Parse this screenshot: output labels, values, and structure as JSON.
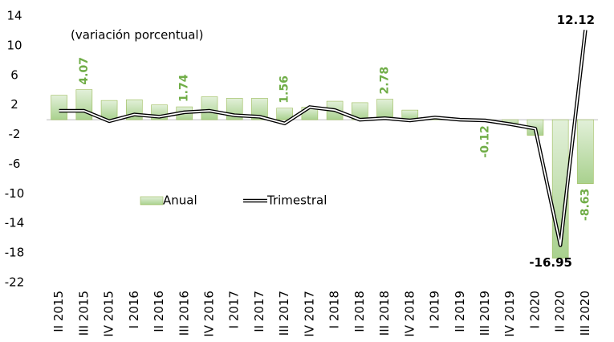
{
  "chart_data": {
    "type": "bar-line",
    "annotation": "(variación porcentual)",
    "categories": [
      "II 2015",
      "III 2015",
      "IV 2015",
      "I 2016",
      "II 2016",
      "III 2016",
      "IV 2016",
      "I 2017",
      "II 2017",
      "III 2017",
      "IV 2017",
      "I 2018",
      "II 2018",
      "III 2018",
      "IV 2018",
      "I 2019",
      "II 2019",
      "III 2019",
      "IV 2019",
      "I 2020",
      "II 2020",
      "III 2020"
    ],
    "series": [
      {
        "name": "Anual",
        "kind": "bar",
        "color": "#a9d18e",
        "label_color": "#70ad47",
        "values": [
          3.3,
          4.07,
          2.6,
          2.7,
          2.0,
          1.74,
          3.1,
          2.9,
          2.9,
          1.56,
          1.7,
          2.5,
          2.3,
          2.78,
          1.3,
          0.1,
          -0.1,
          -0.12,
          -0.6,
          -2.1,
          -18.7,
          -8.63
        ],
        "value_labels": [
          null,
          "4.07",
          null,
          null,
          null,
          "1.74",
          null,
          null,
          null,
          "1.56",
          null,
          null,
          null,
          "2.78",
          null,
          null,
          null,
          "-0.12",
          null,
          null,
          null,
          "-8.63"
        ]
      },
      {
        "name": "Trimestral",
        "kind": "line",
        "color": "#000000",
        "values": [
          1.2,
          1.2,
          -0.2,
          0.7,
          0.4,
          1.0,
          1.2,
          0.6,
          0.4,
          -0.5,
          1.7,
          1.3,
          0.0,
          0.2,
          -0.1,
          0.3,
          0.0,
          -0.1,
          -0.6,
          -1.2,
          -16.95,
          12.12
        ],
        "value_labels": [
          null,
          null,
          null,
          null,
          null,
          null,
          null,
          null,
          null,
          null,
          null,
          null,
          null,
          null,
          null,
          null,
          null,
          null,
          null,
          null,
          "-16.95",
          "12.12"
        ]
      }
    ],
    "ylim": [
      -22,
      14
    ],
    "yticks": [
      14,
      10,
      6,
      2,
      -2,
      -6,
      -10,
      -14,
      -18,
      -22
    ],
    "grid": false,
    "legend": "center-left"
  }
}
